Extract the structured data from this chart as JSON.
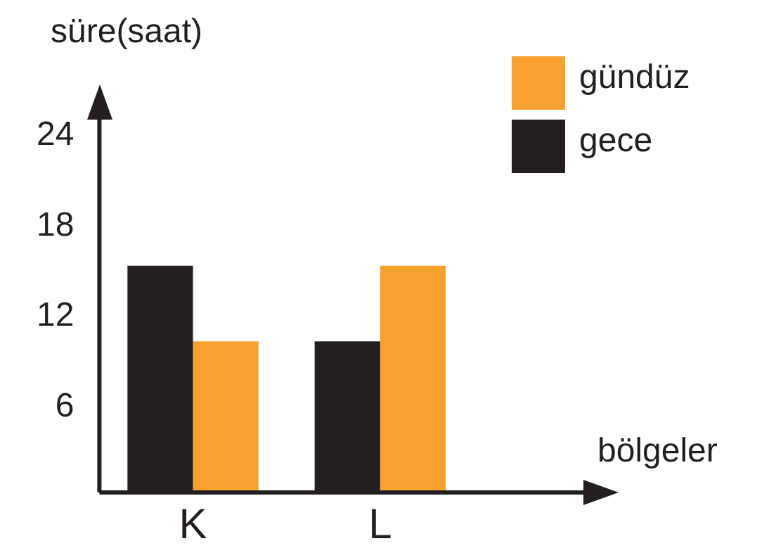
{
  "chart_data": {
    "type": "bar",
    "xlabel": "bölgeler",
    "ylabel": "süre(saat)",
    "categories": [
      "K",
      "L"
    ],
    "series": [
      {
        "name": "gece",
        "color": "#231f20",
        "values": [
          15,
          10
        ]
      },
      {
        "name": "gündüz",
        "color": "#f9a12e",
        "values": [
          10,
          15
        ]
      }
    ],
    "ylim": [
      0,
      27
    ],
    "yticks": [
      6,
      12,
      18,
      24
    ],
    "grid": false,
    "legend": "top right"
  }
}
